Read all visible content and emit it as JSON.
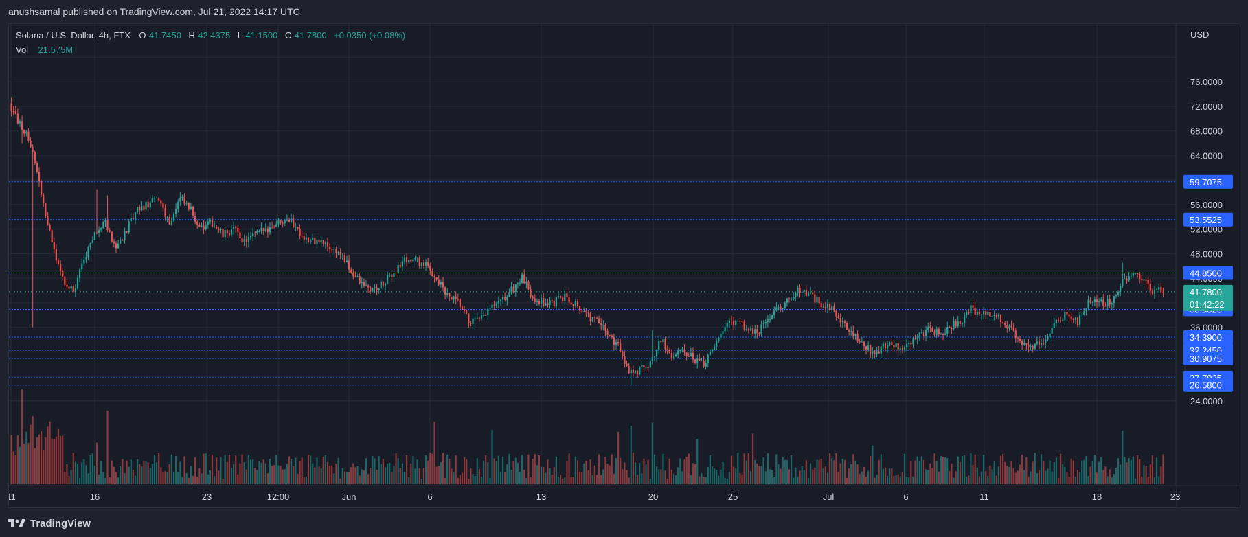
{
  "header": {
    "publish_line": "anushsamal published on TradingView.com, Jul 21, 2022 14:17 UTC"
  },
  "legend": {
    "symbol": "Solana / U.S. Dollar, 4h, FTX",
    "open_label": "O",
    "open": "41.7450",
    "high_label": "H",
    "high": "42.4375",
    "low_label": "L",
    "low": "41.1500",
    "close_label": "C",
    "close": "41.7800",
    "change": "+0.0350 (+0.08%)",
    "vol_label": "Vol",
    "vol_value": "21.575M"
  },
  "footer": {
    "brand": "TradingView",
    "logo_icon": "tradingview-logo-icon"
  },
  "colors": {
    "background": "#181c27",
    "up": "#26a69a",
    "down": "#ef5350",
    "level_line": "#2962ff",
    "label_bg": "#2962ff",
    "last_price_bg": "#26a69a"
  },
  "chart_data": {
    "type": "candlestick",
    "title": "Solana / U.S. Dollar, 4h, FTX",
    "currency": "USD",
    "y_ticks": [
      "76.0000",
      "72.0000",
      "68.0000",
      "64.0000",
      "56.0000",
      "52.0000",
      "48.0000",
      "44.0000",
      "36.0000",
      "24.0000"
    ],
    "x_ticks": [
      "11",
      "16",
      "23",
      "12:00",
      "Jun",
      "6",
      "13",
      "20",
      "25",
      "Jul",
      "6",
      "11",
      "18",
      "23"
    ],
    "levels": [
      "59.7075",
      "53.5525",
      "44.8500",
      "38.9325",
      "34.3900",
      "32.2450",
      "30.9075",
      "27.7925",
      "26.5800"
    ],
    "last_price": {
      "value": "41.7800",
      "countdown": "01:42:22"
    },
    "close_path": [
      [
        0,
        72.5
      ],
      [
        5,
        69
      ],
      [
        10,
        66
      ],
      [
        15,
        58
      ],
      [
        20,
        50
      ],
      [
        25,
        44
      ],
      [
        30,
        42
      ],
      [
        35,
        47
      ],
      [
        40,
        51
      ],
      [
        45,
        53
      ],
      [
        50,
        49
      ],
      [
        55,
        52
      ],
      [
        60,
        55
      ],
      [
        65,
        56
      ],
      [
        70,
        57
      ],
      [
        75,
        53
      ],
      [
        80,
        57
      ],
      [
        85,
        55
      ],
      [
        90,
        52
      ],
      [
        95,
        53
      ],
      [
        100,
        51
      ],
      [
        105,
        52
      ],
      [
        110,
        50
      ],
      [
        115,
        51
      ],
      [
        120,
        52
      ],
      [
        125,
        53
      ],
      [
        130,
        54
      ],
      [
        135,
        52
      ],
      [
        140,
        50
      ],
      [
        145,
        50
      ],
      [
        150,
        49
      ],
      [
        155,
        48
      ],
      [
        160,
        45
      ],
      [
        165,
        43
      ],
      [
        170,
        42
      ],
      [
        175,
        43
      ],
      [
        180,
        45
      ],
      [
        185,
        47
      ],
      [
        190,
        47
      ],
      [
        195,
        46
      ],
      [
        200,
        44
      ],
      [
        205,
        41
      ],
      [
        210,
        40
      ],
      [
        215,
        37
      ],
      [
        220,
        37
      ],
      [
        225,
        39
      ],
      [
        230,
        40
      ],
      [
        235,
        42
      ],
      [
        240,
        44
      ],
      [
        245,
        41
      ],
      [
        250,
        40
      ],
      [
        255,
        40
      ],
      [
        260,
        41
      ],
      [
        265,
        40
      ],
      [
        270,
        38
      ],
      [
        275,
        37
      ],
      [
        280,
        35
      ],
      [
        285,
        33
      ],
      [
        290,
        29
      ],
      [
        295,
        29
      ],
      [
        300,
        30
      ],
      [
        305,
        34
      ],
      [
        310,
        31
      ],
      [
        315,
        32
      ],
      [
        320,
        31
      ],
      [
        325,
        30
      ],
      [
        330,
        33
      ],
      [
        335,
        36
      ],
      [
        340,
        37
      ],
      [
        345,
        36
      ],
      [
        350,
        35
      ],
      [
        355,
        37
      ],
      [
        360,
        39
      ],
      [
        365,
        41
      ],
      [
        370,
        42
      ],
      [
        375,
        41
      ],
      [
        380,
        40
      ],
      [
        385,
        39
      ],
      [
        390,
        37
      ],
      [
        395,
        35
      ],
      [
        400,
        33
      ],
      [
        405,
        32
      ],
      [
        410,
        33
      ],
      [
        415,
        33
      ],
      [
        420,
        33
      ],
      [
        425,
        34
      ],
      [
        430,
        36
      ],
      [
        435,
        35
      ],
      [
        440,
        36
      ],
      [
        445,
        37
      ],
      [
        450,
        39
      ],
      [
        455,
        38
      ],
      [
        460,
        38
      ],
      [
        465,
        37
      ],
      [
        470,
        35
      ],
      [
        475,
        33
      ],
      [
        480,
        33
      ],
      [
        485,
        34
      ],
      [
        490,
        37
      ],
      [
        495,
        38
      ],
      [
        500,
        37
      ],
      [
        505,
        40
      ],
      [
        510,
        40
      ],
      [
        515,
        40
      ],
      [
        520,
        43
      ],
      [
        525,
        45
      ],
      [
        530,
        44
      ],
      [
        535,
        42
      ],
      [
        540,
        41.78
      ]
    ],
    "spikes": [
      [
        0,
        73.5
      ],
      [
        5,
        66
      ],
      [
        10,
        36
      ],
      [
        40,
        58.5
      ],
      [
        45,
        57.5
      ],
      [
        290,
        26.5
      ],
      [
        300,
        35.5
      ],
      [
        520,
        46.5
      ]
    ],
    "n_candles": 540
  }
}
